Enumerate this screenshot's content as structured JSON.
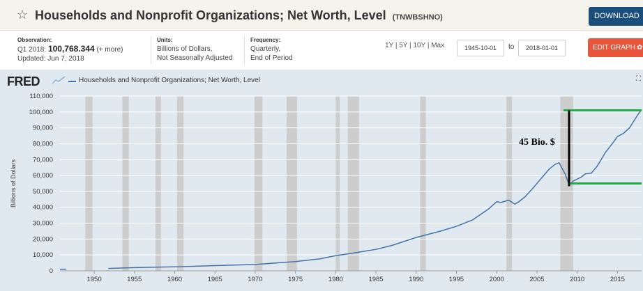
{
  "header": {
    "title": "Households and Nonprofit Organizations; Net Worth, Level",
    "series_id": "(TNWBSHNO)",
    "download_label": "DOWNLOAD"
  },
  "meta": {
    "observation_label": "Observation:",
    "observation_period": "Q1 2018:",
    "observation_value": "100,768.344",
    "observation_more": "(+ more)",
    "updated": "Updated: Jun 7, 2018",
    "units_label": "Units:",
    "units_line1": "Billions of Dollars,",
    "units_line2": "Not Seasonally Adjusted",
    "frequency_label": "Frequency:",
    "frequency_line1": "Quarterly,",
    "frequency_line2": "End of Period"
  },
  "controls": {
    "ranges": [
      "1Y",
      "5Y",
      "10Y",
      "Max"
    ],
    "start_date": "1945-10-01",
    "to_label": "to",
    "end_date": "2018-01-01",
    "edit_label": "EDIT GRAPH"
  },
  "chart_data": {
    "type": "line",
    "logo": "FRED",
    "legend": "Households and Nonprofit Organizations; Net Worth, Level",
    "ylabel": "Billions of Dollars",
    "xlim": [
      1945.75,
      2018.0
    ],
    "ylim": [
      0,
      110000
    ],
    "yticks": [
      "0",
      "10,000",
      "20,000",
      "30,000",
      "40,000",
      "50,000",
      "60,000",
      "70,000",
      "80,000",
      "90,000",
      "100,000",
      "110,000"
    ],
    "xticks": [
      "1950",
      "1955",
      "1960",
      "1965",
      "1970",
      "1975",
      "1980",
      "1985",
      "1990",
      "1995",
      "2000",
      "2005",
      "2010",
      "2015"
    ],
    "recessions": [
      [
        1948.9,
        1949.8
      ],
      [
        1953.5,
        1954.3
      ],
      [
        1957.6,
        1958.3
      ],
      [
        1960.3,
        1961.1
      ],
      [
        1969.9,
        1970.9
      ],
      [
        1973.9,
        1975.2
      ],
      [
        1980.0,
        1980.5
      ],
      [
        1981.5,
        1982.9
      ],
      [
        1990.5,
        1991.2
      ],
      [
        2001.2,
        2001.9
      ],
      [
        2007.9,
        2009.5
      ]
    ],
    "series": [
      {
        "name": "Net Worth",
        "color": "#4572a7",
        "x": [
          1945.75,
          1946.5,
          1951.75,
          1955,
          1960,
          1965,
          1970,
          1973,
          1975,
          1978,
          1980,
          1982,
          1985,
          1987,
          1990,
          1993,
          1995,
          1997,
          1999,
          2000,
          2000.5,
          2001.5,
          2002.25,
          2002.75,
          2003.5,
          2004.5,
          2005.5,
          2006.5,
          2007.25,
          2007.75,
          2008.5,
          2009.0,
          2009.5,
          2010.5,
          2011.0,
          2011.75,
          2012.5,
          2013.5,
          2014.5,
          2015.0,
          2015.75,
          2016.5,
          2017.5,
          2018.0
        ],
        "y": [
          1000,
          1000,
          1500,
          2000,
          2500,
          3300,
          4000,
          5100,
          5800,
          7500,
          9500,
          11000,
          13500,
          16000,
          21000,
          25000,
          28000,
          32000,
          39000,
          43500,
          43000,
          44500,
          42000,
          43500,
          46500,
          52000,
          58000,
          64000,
          67000,
          68000,
          61000,
          54000,
          56500,
          59000,
          61000,
          61500,
          66000,
          74500,
          81000,
          84500,
          86500,
          90000,
          98000,
          101500
        ]
      }
    ],
    "annotations": {
      "label": "45 Bio. $",
      "upper_value": 101000,
      "lower_value": 55000,
      "line_color": "#22aa44"
    }
  }
}
